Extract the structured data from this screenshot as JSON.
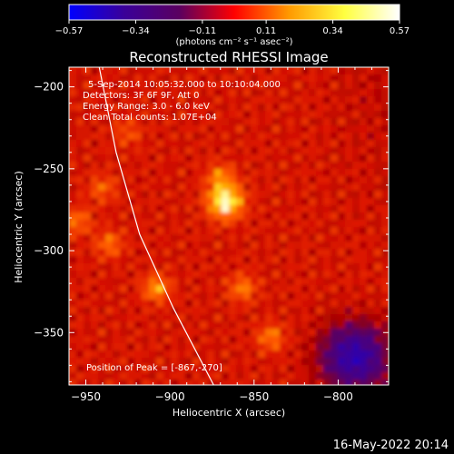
{
  "chart_data": {
    "type": "heatmap",
    "title": "Reconstructed RHESSI Image",
    "xlabel": "Heliocentric X (arcsec)",
    "ylabel": "Heliocentric Y (arcsec)",
    "xlim": [
      -960,
      -770
    ],
    "ylim": [
      -382,
      -188
    ],
    "x_ticks": [
      -950,
      -900,
      -850,
      -800
    ],
    "y_ticks": [
      -200,
      -250,
      -300,
      -350
    ],
    "x_tick_labels": [
      "−950",
      "−900",
      "−850",
      "−800"
    ],
    "y_tick_labels": [
      "−200",
      "−250",
      "−300",
      "−350"
    ],
    "colorbar": {
      "range": [
        -0.57,
        0.57
      ],
      "ticks": [
        -0.57,
        -0.34,
        -0.11,
        0.11,
        0.34,
        0.57
      ],
      "tick_labels": [
        "−0.57",
        "−0.34",
        "−0.11",
        "0.11",
        "0.34",
        "0.57"
      ],
      "units_label": "(photons cm⁻² s⁻¹ asec⁻²)",
      "colors": [
        "#0000ff",
        "#3a0099",
        "#5a0060",
        "#ff0000",
        "#ff9a00",
        "#ffff40",
        "#ffffff"
      ]
    },
    "peak": {
      "x": -867,
      "y": -270,
      "value": 0.57
    },
    "secondary_sources": [
      {
        "x": -908,
        "y": -323,
        "value": 0.35
      },
      {
        "x": -857,
        "y": -323,
        "value": 0.3
      },
      {
        "x": -936,
        "y": -296,
        "value": 0.28
      },
      {
        "x": -840,
        "y": -353,
        "value": 0.3
      },
      {
        "x": -955,
        "y": -282,
        "value": 0.28
      },
      {
        "x": -940,
        "y": -262,
        "value": 0.25
      },
      {
        "x": -925,
        "y": -228,
        "value": 0.22
      },
      {
        "x": -870,
        "y": -255,
        "value": 0.3
      }
    ],
    "negative_region": {
      "x": -790,
      "y": -365,
      "value": -0.3
    },
    "limb_curve": [
      {
        "x": -942,
        "y": -188
      },
      {
        "x": -932,
        "y": -240
      },
      {
        "x": -918,
        "y": -290
      },
      {
        "x": -898,
        "y": -335
      },
      {
        "x": -874,
        "y": -382
      }
    ],
    "annotations": [
      "5-Sep-2014 10:05:32.000 to 10:10:04.000",
      "Detectors: 3F 6F 9F, Att 0",
      "Energy Range: 3.0 - 6.0 keV",
      "Clean    Total counts: 1.07E+04"
    ],
    "peak_label": "Position of Peak = [-867,-270]",
    "footer_date": "16-May-2022 20:14"
  }
}
